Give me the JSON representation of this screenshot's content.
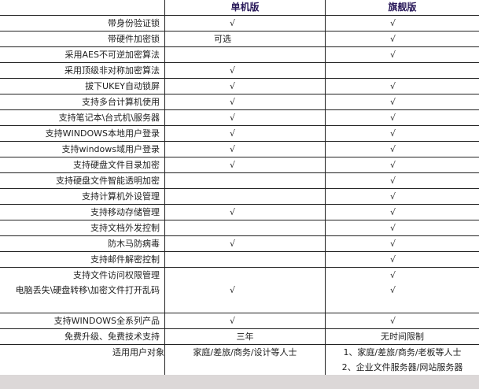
{
  "header": {
    "col1": "",
    "col2": "单机版",
    "col3": "旗舰版"
  },
  "rows": [
    {
      "feature": "带身份验证锁",
      "single": "√",
      "flagship": "√"
    },
    {
      "feature": "带硬件加密锁",
      "single": "可选",
      "flagship": "√"
    },
    {
      "feature": "采用AES不可逆加密算法",
      "single": "",
      "flagship": "√"
    },
    {
      "feature": "采用顶级非对称加密算法",
      "single": "√",
      "flagship": ""
    },
    {
      "feature": "拔下UKEY自动锁屏",
      "single": "√",
      "flagship": "√"
    },
    {
      "feature": "支持多台计算机使用",
      "single": "√",
      "flagship": "√"
    },
    {
      "feature": "支持笔记本\\台式机\\服务器",
      "single": "√",
      "flagship": "√"
    },
    {
      "feature": "支持WINDOWS本地用户登录",
      "single": "√",
      "flagship": "√"
    },
    {
      "feature": "支持windows域用户登录",
      "single": "√",
      "flagship": "√"
    },
    {
      "feature": "支持硬盘文件目录加密",
      "single": "√",
      "flagship": "√"
    },
    {
      "feature": "支持硬盘文件智能透明加密",
      "single": "",
      "flagship": "√"
    },
    {
      "feature": "支持计算机外设管理",
      "single": "",
      "flagship": "√"
    },
    {
      "feature": "支持移动存储管理",
      "single": "√",
      "flagship": "√"
    },
    {
      "feature": "支持文档外发控制",
      "single": "",
      "flagship": "√"
    },
    {
      "feature": "防木马防病毒",
      "single": "√",
      "flagship": "√"
    },
    {
      "feature": "支持邮件解密控制",
      "single": "",
      "flagship": "√"
    },
    {
      "feature": "支持文件访问权限管理",
      "single": "",
      "flagship": "√"
    }
  ],
  "multi_row": {
    "feature": "电脑丢失\\硬盘转移\\加密文件打开乱码",
    "single": "√",
    "flagship": "√"
  },
  "windows_row": {
    "feature": "支持WINDOWS全系列产品",
    "single": "√",
    "flagship": "√"
  },
  "upgrade_row": {
    "feature": "免费升级、免费技术支持",
    "single": "三年",
    "flagship": "无时间限制"
  },
  "users_row": {
    "feature": "适用用户对象",
    "single": "家庭/差旅/商务/设计等人士",
    "flagship_line1": "1、家庭/差旅/商务/老板等人士",
    "flagship_line2": "2、企业文件服务器/网站服务器"
  }
}
